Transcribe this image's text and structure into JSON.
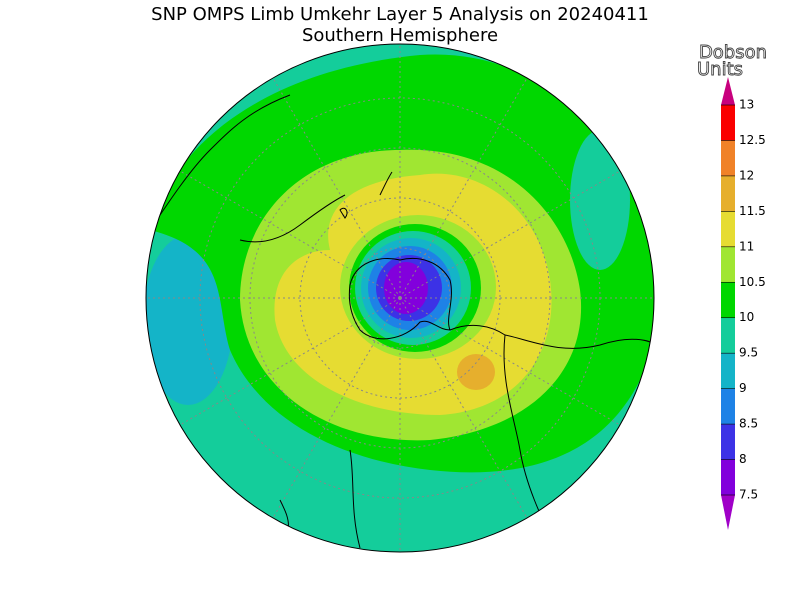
{
  "header": {
    "title": "SNP OMPS Limb Umkehr Layer 5 Analysis on 20240411",
    "subtitle": "Southern Hemisphere"
  },
  "colorbar": {
    "label_lines": [
      "Dobson",
      "Units"
    ],
    "ticks": [
      7.5,
      8,
      8.5,
      9,
      9.5,
      10,
      10.5,
      11,
      11.5,
      12,
      12.5,
      13
    ],
    "colors": [
      "#8200dc",
      "#3c32e6",
      "#1e82e6",
      "#14b4c8",
      "#14cd9b",
      "#00d700",
      "#a0e632",
      "#e6dc32",
      "#e6af2d",
      "#f08228",
      "#fa0000"
    ],
    "under_color": "#a000c8",
    "over_color": "#c8007d"
  }
}
